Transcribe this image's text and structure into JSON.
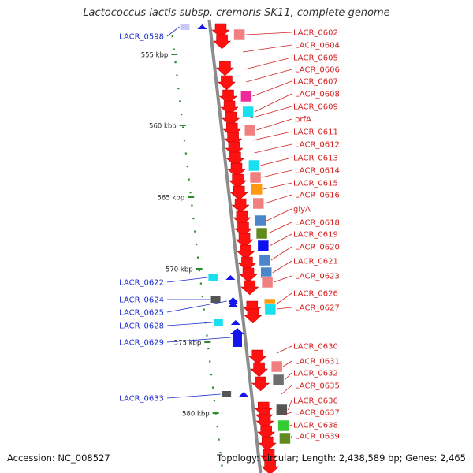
{
  "title": "Lactococcus lactis subsp. cremoris SK11, complete genome",
  "footer": {
    "accession": "Accession: NC_008527",
    "summary": "Topology: circular; Length: 2,438,589 bp; Genes: 2,465"
  },
  "colors": {
    "reverse_label": "#d42020",
    "forward_label": "#1a2ccc",
    "reverse_gene": "#ff1111",
    "forward_gene": "#1515ee",
    "tick": "#2a8a2a",
    "backbone": "#8c8c8c"
  },
  "scale_labels": [
    {
      "text": "555 kbp",
      "kbp": 555
    },
    {
      "text": "560 kbp",
      "kbp": 560
    },
    {
      "text": "565 kbp",
      "kbp": 565
    },
    {
      "text": "570 kbp",
      "kbp": 570
    },
    {
      "text": "575 kbp",
      "kbp": 575
    },
    {
      "text": "580 kbp",
      "kbp": 580
    }
  ],
  "reverse_genes": [
    {
      "label": "LACR_0602",
      "feature": "pink"
    },
    {
      "label": "LACR_0604",
      "feature": "none"
    },
    {
      "label": "LACR_0605",
      "feature": "none"
    },
    {
      "label": "LACR_0606",
      "feature": "none"
    },
    {
      "label": "LACR_0607",
      "feature": "magenta"
    },
    {
      "label": "LACR_0608",
      "feature": "cyan"
    },
    {
      "label": "LACR_0609",
      "feature": "none"
    },
    {
      "label": "prfA",
      "feature": "pink"
    },
    {
      "label": "LACR_0611",
      "feature": "none"
    },
    {
      "label": "LACR_0612",
      "feature": "none"
    },
    {
      "label": "LACR_0613",
      "feature": "cyan"
    },
    {
      "label": "LACR_0614",
      "feature": "pink"
    },
    {
      "label": "LACR_0615",
      "feature": "orange"
    },
    {
      "label": "LACR_0616",
      "feature": "pink"
    },
    {
      "label": "glyA",
      "feature": "steelblue"
    },
    {
      "label": "LACR_0618",
      "feature": "olive"
    },
    {
      "label": "LACR_0619",
      "feature": "blue"
    },
    {
      "label": "LACR_0620",
      "feature": "steelblue"
    },
    {
      "label": "LACR_0621",
      "feature": "steelblue"
    },
    {
      "label": "LACR_0623",
      "feature": "pink"
    },
    {
      "label": "LACR_0626",
      "feature": "orange"
    },
    {
      "label": "LACR_0627",
      "feature": "cyan"
    },
    {
      "label": "LACR_0630",
      "feature": "none"
    },
    {
      "label": "LACR_0631",
      "feature": "pink"
    },
    {
      "label": "LACR_0632",
      "feature": "gray"
    },
    {
      "label": "LACR_0635",
      "feature": "none"
    },
    {
      "label": "LACR_0636",
      "feature": "darkgray"
    },
    {
      "label": "LACR_0637",
      "feature": "none"
    },
    {
      "label": "LACR_0638",
      "feature": "green"
    },
    {
      "label": "LACR_0639",
      "feature": "olive"
    }
  ],
  "forward_genes": [
    {
      "label": "LACR_0598",
      "feature": "lavender"
    },
    {
      "label": "LACR_0622",
      "feature": "cyan"
    },
    {
      "label": "LACR_0624",
      "feature": "darkgray"
    },
    {
      "label": "LACR_0625",
      "feature": "none"
    },
    {
      "label": "LACR_0628",
      "feature": "cyan"
    },
    {
      "label": "LACR_0629",
      "feature": "none"
    },
    {
      "label": "LACR_0633",
      "feature": "darkgray"
    }
  ]
}
